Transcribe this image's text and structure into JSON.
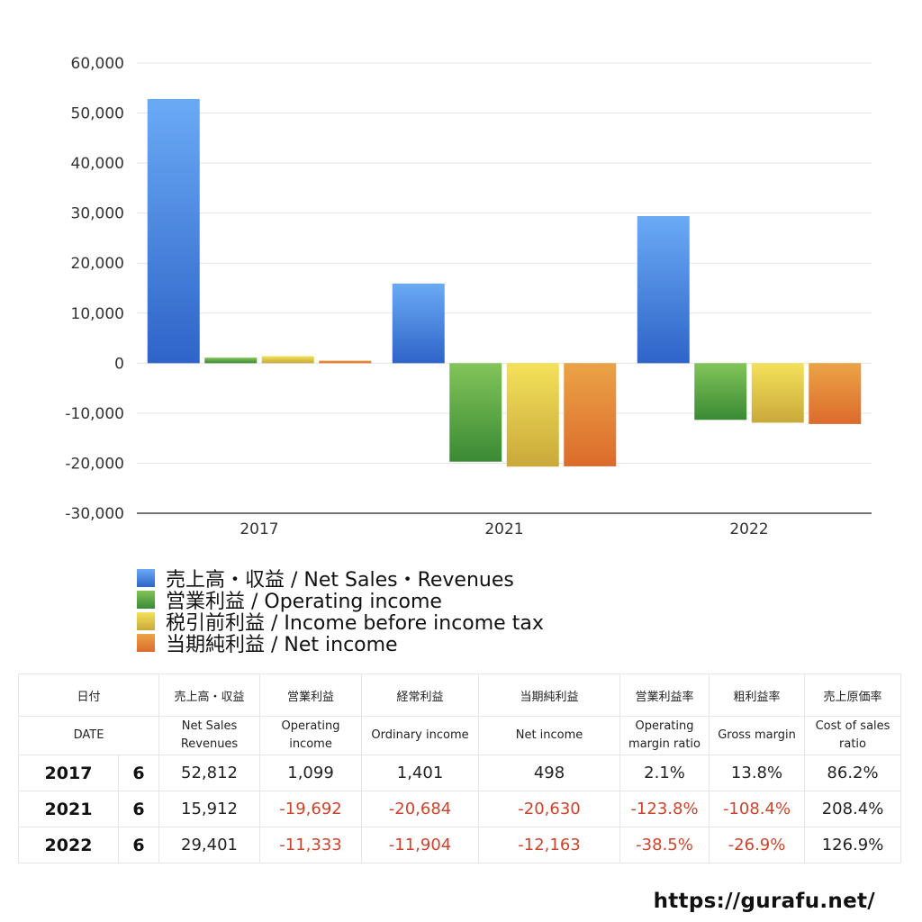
{
  "chart_data": {
    "type": "bar",
    "categories": [
      "2017",
      "2021",
      "2022"
    ],
    "ylim": [
      -30000,
      60000
    ],
    "yticks": [
      "60,000",
      "50,000",
      "40,000",
      "30,000",
      "20,000",
      "10,000",
      "0",
      "-10,000",
      "-20,000",
      "-30,000"
    ],
    "ytick_values": [
      60000,
      50000,
      40000,
      30000,
      20000,
      10000,
      0,
      -10000,
      -20000,
      -30000
    ],
    "grid": true,
    "legend_position": "bottom-left",
    "series": [
      {
        "name": "売上高・収益 / Net Sales・Revenues",
        "values": [
          52812,
          15912,
          29401
        ],
        "color_top": "#6aaaf5",
        "color_bottom": "#2f64c8"
      },
      {
        "name": "営業利益 / Operating income",
        "values": [
          1099,
          -19692,
          -11333
        ],
        "color_top": "#82c459",
        "color_bottom": "#3a8a34"
      },
      {
        "name": "税引前利益 / Income before income tax",
        "values": [
          1401,
          -20684,
          -11904
        ],
        "color_top": "#f4e15a",
        "color_bottom": "#c9a93a"
      },
      {
        "name": "当期純利益 / Net income",
        "values": [
          498,
          -20630,
          -12163
        ],
        "color_top": "#eba346",
        "color_bottom": "#dc6b2c"
      }
    ]
  },
  "table": {
    "header_jp": [
      "日付",
      "売上高・収益",
      "営業利益",
      "経常利益",
      "当期純利益",
      "営業利益率",
      "粗利益率",
      "売上原価率"
    ],
    "header_en": [
      "DATE",
      "Net Sales\nRevenues",
      "Operating\nincome",
      "Ordinary income",
      "Net income",
      "Operating\nmargin ratio",
      "Gross margin",
      "Cost of sales\nratio"
    ],
    "rows": [
      {
        "year": "2017",
        "month": "6",
        "cells": [
          "52,812",
          "1,099",
          "1,401",
          "498",
          "2.1%",
          "13.8%",
          "86.2%"
        ]
      },
      {
        "year": "2021",
        "month": "6",
        "cells": [
          "15,912",
          "-19,692",
          "-20,684",
          "-20,630",
          "-123.8%",
          "-108.4%",
          "208.4%"
        ]
      },
      {
        "year": "2022",
        "month": "6",
        "cells": [
          "29,401",
          "-11,333",
          "-11,904",
          "-12,163",
          "-38.5%",
          "-26.9%",
          "126.9%"
        ]
      }
    ]
  },
  "site_url": "https://gurafu.net/"
}
